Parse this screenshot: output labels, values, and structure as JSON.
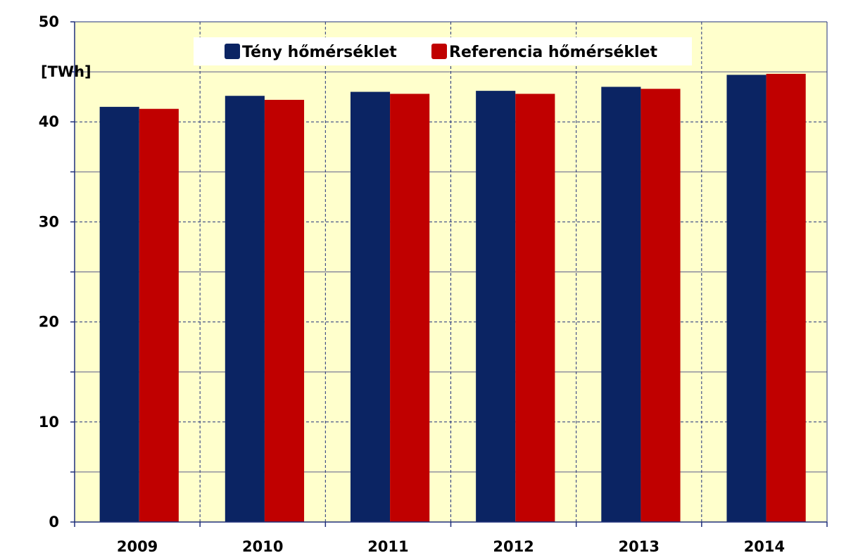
{
  "chart_data": {
    "type": "bar",
    "categories": [
      "2009",
      "2010",
      "2011",
      "2012",
      "2013",
      "2014"
    ],
    "series": [
      {
        "name": "Tény hőmérséklet",
        "color": "#0b2463",
        "values": [
          41.5,
          42.6,
          43.0,
          43.1,
          43.5,
          44.7
        ]
      },
      {
        "name": "Referencia hőmérséklet",
        "color": "#c00000",
        "values": [
          41.3,
          42.2,
          42.8,
          42.8,
          43.3,
          44.8
        ]
      }
    ],
    "unit_label": "[TWh]",
    "ylim": [
      0,
      50
    ],
    "yticks": [
      0,
      10,
      20,
      30,
      40,
      50
    ],
    "grid": true,
    "legend_position": "top",
    "plot_background": "#ffffcc"
  }
}
